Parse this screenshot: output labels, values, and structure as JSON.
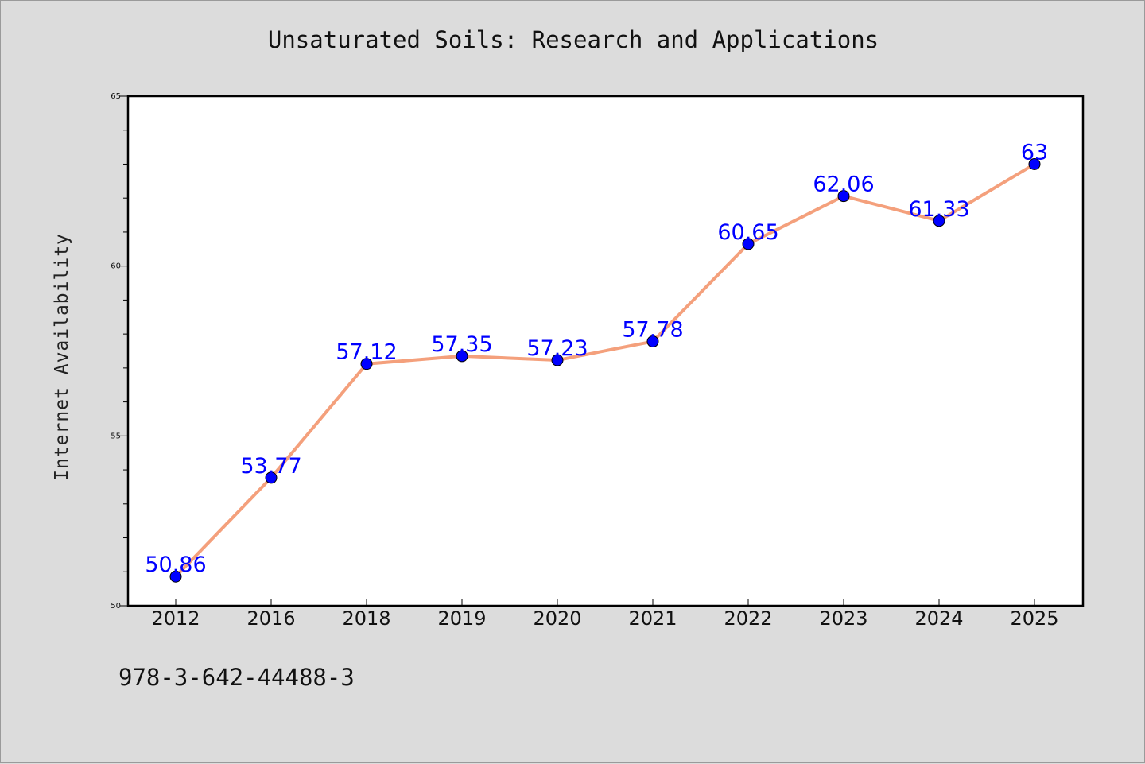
{
  "chart_data": {
    "type": "line",
    "title": "Unsaturated Soils: Research and Applications",
    "xlabel": "",
    "ylabel": "Internet Availability",
    "categories": [
      "2012",
      "2016",
      "2018",
      "2019",
      "2020",
      "2021",
      "2022",
      "2023",
      "2024",
      "2025"
    ],
    "series": [
      {
        "values": [
          50.86,
          53.77,
          57.12,
          57.35,
          57.23,
          57.78,
          60.65,
          62.06,
          61.33,
          63
        ]
      }
    ],
    "data_labels": [
      "50.86",
      "53.77",
      "57.12",
      "57.35",
      "57.23",
      "57.78",
      "60.65",
      "62.06",
      "61.33",
      "63"
    ],
    "ylim": [
      50,
      65
    ],
    "y_ticks": [
      50,
      55,
      60,
      65
    ],
    "y_tick_labels": [
      "50",
      "55",
      "60",
      "65"
    ],
    "grid": false,
    "line_color": "#f4a07c",
    "marker_color": "#0000ff",
    "label_color": "#0000ff"
  },
  "footer": {
    "isbn": "978-3-642-44488-3"
  }
}
